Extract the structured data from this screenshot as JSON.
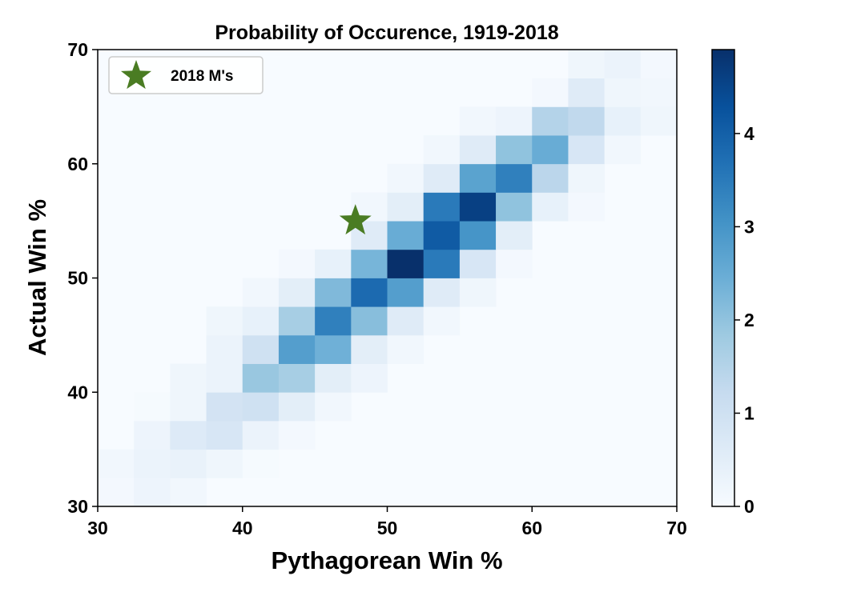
{
  "chart_data": {
    "type": "heatmap",
    "title": "Probability of Occurence, 1919-2018",
    "xlabel": "Pythagorean Win %",
    "ylabel": "Actual Win %",
    "xlim": [
      30,
      70
    ],
    "ylim": [
      30,
      70
    ],
    "x_ticks": [
      "30",
      "40",
      "50",
      "60",
      "70"
    ],
    "y_ticks": [
      "30",
      "40",
      "50",
      "60",
      "70"
    ],
    "bin_size": 2.5,
    "colorbar": {
      "min": 0,
      "max": 4.9,
      "ticks": [
        "0",
        "1",
        "2",
        "3",
        "4"
      ],
      "tick_values": [
        0,
        1,
        2,
        3,
        4
      ],
      "colormap": "Blues"
    },
    "colormap_stops": [
      "#f7fbff",
      "#deebf7",
      "#c6dbef",
      "#9ecae1",
      "#6baed6",
      "#4292c6",
      "#2171b5",
      "#08519c",
      "#08306b"
    ],
    "cells": [
      {
        "x": 30,
        "y": 30,
        "v": 0.1
      },
      {
        "x": 32.5,
        "y": 30,
        "v": 0.25
      },
      {
        "x": 35,
        "y": 30,
        "v": 0.15
      },
      {
        "x": 30,
        "y": 32.5,
        "v": 0.15
      },
      {
        "x": 32.5,
        "y": 32.5,
        "v": 0.3
      },
      {
        "x": 35,
        "y": 32.5,
        "v": 0.35
      },
      {
        "x": 37.5,
        "y": 32.5,
        "v": 0.2
      },
      {
        "x": 40,
        "y": 32.5,
        "v": 0.05
      },
      {
        "x": 32.5,
        "y": 35,
        "v": 0.25
      },
      {
        "x": 35,
        "y": 35,
        "v": 0.65
      },
      {
        "x": 37.5,
        "y": 35,
        "v": 0.8
      },
      {
        "x": 40,
        "y": 35,
        "v": 0.3
      },
      {
        "x": 42.5,
        "y": 35,
        "v": 0.1
      },
      {
        "x": 32.5,
        "y": 37.5,
        "v": 0.05
      },
      {
        "x": 35,
        "y": 37.5,
        "v": 0.2
      },
      {
        "x": 37.5,
        "y": 37.5,
        "v": 0.9
      },
      {
        "x": 40,
        "y": 37.5,
        "v": 1.0
      },
      {
        "x": 42.5,
        "y": 37.5,
        "v": 0.5
      },
      {
        "x": 45,
        "y": 37.5,
        "v": 0.15
      },
      {
        "x": 35,
        "y": 40,
        "v": 0.2
      },
      {
        "x": 37.5,
        "y": 40,
        "v": 0.3
      },
      {
        "x": 40,
        "y": 40,
        "v": 1.9
      },
      {
        "x": 42.5,
        "y": 40,
        "v": 1.7
      },
      {
        "x": 45,
        "y": 40,
        "v": 0.5
      },
      {
        "x": 47.5,
        "y": 40,
        "v": 0.25
      },
      {
        "x": 37.5,
        "y": 42.5,
        "v": 0.3
      },
      {
        "x": 40,
        "y": 42.5,
        "v": 1.0
      },
      {
        "x": 42.5,
        "y": 42.5,
        "v": 2.8
      },
      {
        "x": 45,
        "y": 42.5,
        "v": 2.4
      },
      {
        "x": 47.5,
        "y": 42.5,
        "v": 0.5
      },
      {
        "x": 50,
        "y": 42.5,
        "v": 0.15
      },
      {
        "x": 37.5,
        "y": 45,
        "v": 0.2
      },
      {
        "x": 40,
        "y": 45,
        "v": 0.4
      },
      {
        "x": 42.5,
        "y": 45,
        "v": 1.7
      },
      {
        "x": 45,
        "y": 45,
        "v": 3.4
      },
      {
        "x": 47.5,
        "y": 45,
        "v": 2.1
      },
      {
        "x": 50,
        "y": 45,
        "v": 0.6
      },
      {
        "x": 52.5,
        "y": 45,
        "v": 0.15
      },
      {
        "x": 40,
        "y": 47.5,
        "v": 0.15
      },
      {
        "x": 42.5,
        "y": 47.5,
        "v": 0.5
      },
      {
        "x": 45,
        "y": 47.5,
        "v": 2.2
      },
      {
        "x": 47.5,
        "y": 47.5,
        "v": 3.8
      },
      {
        "x": 50,
        "y": 47.5,
        "v": 2.8
      },
      {
        "x": 52.5,
        "y": 47.5,
        "v": 0.6
      },
      {
        "x": 55,
        "y": 47.5,
        "v": 0.2
      },
      {
        "x": 42.5,
        "y": 50,
        "v": 0.1
      },
      {
        "x": 45,
        "y": 50,
        "v": 0.4
      },
      {
        "x": 47.5,
        "y": 50,
        "v": 2.3
      },
      {
        "x": 50,
        "y": 50,
        "v": 4.9
      },
      {
        "x": 52.5,
        "y": 50,
        "v": 3.5
      },
      {
        "x": 55,
        "y": 50,
        "v": 0.8
      },
      {
        "x": 57.5,
        "y": 50,
        "v": 0.1
      },
      {
        "x": 47.5,
        "y": 52.5,
        "v": 0.6
      },
      {
        "x": 50,
        "y": 52.5,
        "v": 2.5
      },
      {
        "x": 52.5,
        "y": 52.5,
        "v": 4.1
      },
      {
        "x": 55,
        "y": 52.5,
        "v": 3.0
      },
      {
        "x": 57.5,
        "y": 52.5,
        "v": 0.5
      },
      {
        "x": 47.5,
        "y": 55,
        "v": 0.15
      },
      {
        "x": 50,
        "y": 55,
        "v": 0.5
      },
      {
        "x": 52.5,
        "y": 55,
        "v": 3.5
      },
      {
        "x": 55,
        "y": 55,
        "v": 4.6
      },
      {
        "x": 57.5,
        "y": 55,
        "v": 2.0
      },
      {
        "x": 60,
        "y": 55,
        "v": 0.4
      },
      {
        "x": 62.5,
        "y": 55,
        "v": 0.1
      },
      {
        "x": 50,
        "y": 57.5,
        "v": 0.15
      },
      {
        "x": 52.5,
        "y": 57.5,
        "v": 0.6
      },
      {
        "x": 55,
        "y": 57.5,
        "v": 2.7
      },
      {
        "x": 57.5,
        "y": 57.5,
        "v": 3.4
      },
      {
        "x": 60,
        "y": 57.5,
        "v": 1.4
      },
      {
        "x": 62.5,
        "y": 57.5,
        "v": 0.2
      },
      {
        "x": 52.5,
        "y": 60,
        "v": 0.15
      },
      {
        "x": 55,
        "y": 60,
        "v": 0.6
      },
      {
        "x": 57.5,
        "y": 60,
        "v": 2.0
      },
      {
        "x": 60,
        "y": 60,
        "v": 2.5
      },
      {
        "x": 62.5,
        "y": 60,
        "v": 0.8
      },
      {
        "x": 65,
        "y": 60,
        "v": 0.15
      },
      {
        "x": 55,
        "y": 62.5,
        "v": 0.15
      },
      {
        "x": 57.5,
        "y": 62.5,
        "v": 0.25
      },
      {
        "x": 60,
        "y": 62.5,
        "v": 1.5
      },
      {
        "x": 62.5,
        "y": 62.5,
        "v": 1.3
      },
      {
        "x": 65,
        "y": 62.5,
        "v": 0.4
      },
      {
        "x": 67.5,
        "y": 62.5,
        "v": 0.2
      },
      {
        "x": 60,
        "y": 65,
        "v": 0.1
      },
      {
        "x": 62.5,
        "y": 65,
        "v": 0.6
      },
      {
        "x": 65,
        "y": 65,
        "v": 0.2
      },
      {
        "x": 67.5,
        "y": 65,
        "v": 0.15
      },
      {
        "x": 62.5,
        "y": 67.5,
        "v": 0.2
      },
      {
        "x": 65,
        "y": 67.5,
        "v": 0.3
      },
      {
        "x": 67.5,
        "y": 67.5,
        "v": 0.1
      }
    ],
    "marker": {
      "name": "2018 M's",
      "x": 47.8,
      "y": 55.0,
      "shape": "star",
      "color": "#4a7c23"
    },
    "legend": {
      "position": "top-left",
      "entries": [
        "2018 M's"
      ]
    },
    "grid": false
  }
}
